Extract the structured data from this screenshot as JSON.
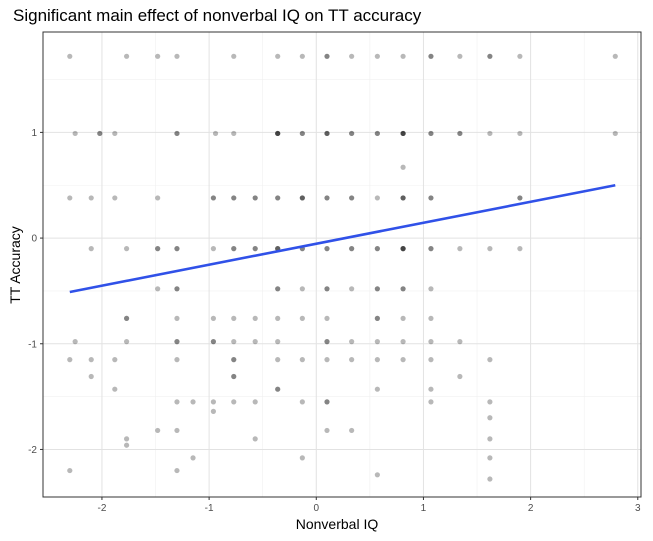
{
  "chart_data": {
    "type": "scatter",
    "title": "Significant main effect of nonverbal IQ on TT accuracy",
    "xlabel": "Nonverbal IQ",
    "ylabel": "TT Accuracy",
    "xlim": [
      -2.55,
      3.03
    ],
    "ylim": [
      -2.45,
      1.95
    ],
    "x_ticks": [
      -2,
      -1,
      0,
      1,
      2,
      3
    ],
    "y_ticks": [
      -2,
      -1,
      0,
      1
    ],
    "x_tick_labels": [
      "-2",
      "-1",
      "0",
      "1",
      "2",
      "3"
    ],
    "y_tick_labels": [
      "-2",
      "-1",
      "0",
      "1"
    ],
    "grid": true,
    "legend": "none",
    "point_color": "#000000",
    "point_alpha": 0.28,
    "line_color": "#3051e8",
    "fit_line": {
      "x": [
        -2.3,
        2.79
      ],
      "y": [
        -0.51,
        0.5
      ]
    },
    "points": [
      {
        "x": -2.3,
        "y": 1.72
      },
      {
        "x": -1.77,
        "y": 1.72
      },
      {
        "x": -1.48,
        "y": 1.72
      },
      {
        "x": -1.3,
        "y": 1.72
      },
      {
        "x": -0.77,
        "y": 1.72
      },
      {
        "x": -0.36,
        "y": 1.72
      },
      {
        "x": -0.13,
        "y": 1.72
      },
      {
        "x": 0.1,
        "y": 1.72
      },
      {
        "x": 0.1,
        "y": 1.72
      },
      {
        "x": 0.33,
        "y": 1.72
      },
      {
        "x": 0.57,
        "y": 1.72
      },
      {
        "x": 0.81,
        "y": 1.72
      },
      {
        "x": 1.07,
        "y": 1.72
      },
      {
        "x": 1.07,
        "y": 1.72
      },
      {
        "x": 1.34,
        "y": 1.72
      },
      {
        "x": 1.62,
        "y": 1.72
      },
      {
        "x": 1.62,
        "y": 1.72
      },
      {
        "x": 1.9,
        "y": 1.72
      },
      {
        "x": 2.79,
        "y": 1.72
      },
      {
        "x": -2.25,
        "y": 0.99
      },
      {
        "x": -2.02,
        "y": 0.99
      },
      {
        "x": -2.02,
        "y": 0.99
      },
      {
        "x": -1.88,
        "y": 0.99
      },
      {
        "x": -1.3,
        "y": 0.99
      },
      {
        "x": -1.3,
        "y": 0.99
      },
      {
        "x": -0.94,
        "y": 0.99
      },
      {
        "x": -0.77,
        "y": 0.99
      },
      {
        "x": -0.36,
        "y": 0.99
      },
      {
        "x": -0.36,
        "y": 0.99
      },
      {
        "x": -0.36,
        "y": 0.99
      },
      {
        "x": -0.36,
        "y": 0.99
      },
      {
        "x": -0.13,
        "y": 0.99
      },
      {
        "x": -0.13,
        "y": 0.99
      },
      {
        "x": 0.1,
        "y": 0.99
      },
      {
        "x": 0.1,
        "y": 0.99
      },
      {
        "x": 0.1,
        "y": 0.99
      },
      {
        "x": 0.33,
        "y": 0.99
      },
      {
        "x": 0.33,
        "y": 0.99
      },
      {
        "x": 0.57,
        "y": 0.99
      },
      {
        "x": 0.57,
        "y": 0.99
      },
      {
        "x": 0.81,
        "y": 0.99
      },
      {
        "x": 0.81,
        "y": 0.99
      },
      {
        "x": 0.81,
        "y": 0.99
      },
      {
        "x": 0.81,
        "y": 0.99
      },
      {
        "x": 1.07,
        "y": 0.99
      },
      {
        "x": 1.07,
        "y": 0.99
      },
      {
        "x": 1.34,
        "y": 0.99
      },
      {
        "x": 1.34,
        "y": 0.99
      },
      {
        "x": 1.62,
        "y": 0.99
      },
      {
        "x": 1.9,
        "y": 0.99
      },
      {
        "x": 2.79,
        "y": 0.99
      },
      {
        "x": 0.81,
        "y": 0.67
      },
      {
        "x": -2.3,
        "y": 0.38
      },
      {
        "x": -2.1,
        "y": 0.38
      },
      {
        "x": -1.88,
        "y": 0.38
      },
      {
        "x": -1.48,
        "y": 0.38
      },
      {
        "x": -0.96,
        "y": 0.38
      },
      {
        "x": -0.96,
        "y": 0.38
      },
      {
        "x": -0.77,
        "y": 0.38
      },
      {
        "x": -0.77,
        "y": 0.38
      },
      {
        "x": -0.57,
        "y": 0.38
      },
      {
        "x": -0.57,
        "y": 0.38
      },
      {
        "x": -0.36,
        "y": 0.38
      },
      {
        "x": -0.36,
        "y": 0.38
      },
      {
        "x": -0.13,
        "y": 0.38
      },
      {
        "x": -0.13,
        "y": 0.38
      },
      {
        "x": -0.13,
        "y": 0.38
      },
      {
        "x": 0.1,
        "y": 0.38
      },
      {
        "x": 0.1,
        "y": 0.38
      },
      {
        "x": 0.33,
        "y": 0.38
      },
      {
        "x": 0.33,
        "y": 0.38
      },
      {
        "x": 0.57,
        "y": 0.38
      },
      {
        "x": 0.81,
        "y": 0.38
      },
      {
        "x": 0.81,
        "y": 0.38
      },
      {
        "x": 0.81,
        "y": 0.38
      },
      {
        "x": 1.07,
        "y": 0.38
      },
      {
        "x": 1.07,
        "y": 0.38
      },
      {
        "x": 1.9,
        "y": 0.38
      },
      {
        "x": 1.9,
        "y": 0.38
      },
      {
        "x": -2.1,
        "y": -0.1
      },
      {
        "x": -1.77,
        "y": -0.1
      },
      {
        "x": -1.48,
        "y": -0.1
      },
      {
        "x": -1.48,
        "y": -0.1
      },
      {
        "x": -1.3,
        "y": -0.1
      },
      {
        "x": -1.3,
        "y": -0.1
      },
      {
        "x": -0.96,
        "y": -0.1
      },
      {
        "x": -0.77,
        "y": -0.1
      },
      {
        "x": -0.77,
        "y": -0.1
      },
      {
        "x": -0.57,
        "y": -0.1
      },
      {
        "x": -0.57,
        "y": -0.1
      },
      {
        "x": -0.36,
        "y": -0.1
      },
      {
        "x": -0.36,
        "y": -0.1
      },
      {
        "x": -0.36,
        "y": -0.1
      },
      {
        "x": -0.13,
        "y": -0.1
      },
      {
        "x": -0.13,
        "y": -0.1
      },
      {
        "x": 0.1,
        "y": -0.1
      },
      {
        "x": 0.1,
        "y": -0.1
      },
      {
        "x": 0.33,
        "y": -0.1
      },
      {
        "x": 0.33,
        "y": -0.1
      },
      {
        "x": 0.57,
        "y": -0.1
      },
      {
        "x": 0.57,
        "y": -0.1
      },
      {
        "x": 0.81,
        "y": -0.1
      },
      {
        "x": 0.81,
        "y": -0.1
      },
      {
        "x": 0.81,
        "y": -0.1
      },
      {
        "x": 0.81,
        "y": -0.1
      },
      {
        "x": 1.07,
        "y": -0.1
      },
      {
        "x": 1.07,
        "y": -0.1
      },
      {
        "x": 1.34,
        "y": -0.1
      },
      {
        "x": 1.62,
        "y": -0.1
      },
      {
        "x": 1.9,
        "y": -0.1
      },
      {
        "x": -1.48,
        "y": -0.48
      },
      {
        "x": -1.3,
        "y": -0.48
      },
      {
        "x": -1.3,
        "y": -0.48
      },
      {
        "x": -0.36,
        "y": -0.48
      },
      {
        "x": -0.36,
        "y": -0.48
      },
      {
        "x": -0.13,
        "y": -0.48
      },
      {
        "x": 0.1,
        "y": -0.48
      },
      {
        "x": 0.1,
        "y": -0.48
      },
      {
        "x": 0.33,
        "y": -0.48
      },
      {
        "x": 0.57,
        "y": -0.48
      },
      {
        "x": 0.57,
        "y": -0.48
      },
      {
        "x": 0.81,
        "y": -0.48
      },
      {
        "x": 0.81,
        "y": -0.48
      },
      {
        "x": 1.07,
        "y": -0.48
      },
      {
        "x": -1.77,
        "y": -0.76
      },
      {
        "x": -1.77,
        "y": -0.76
      },
      {
        "x": -1.3,
        "y": -0.76
      },
      {
        "x": -0.96,
        "y": -0.76
      },
      {
        "x": -0.77,
        "y": -0.76
      },
      {
        "x": -0.57,
        "y": -0.76
      },
      {
        "x": -0.36,
        "y": -0.76
      },
      {
        "x": -0.13,
        "y": -0.76
      },
      {
        "x": 0.1,
        "y": -0.76
      },
      {
        "x": 0.57,
        "y": -0.76
      },
      {
        "x": 0.57,
        "y": -0.76
      },
      {
        "x": 0.81,
        "y": -0.76
      },
      {
        "x": 1.07,
        "y": -0.76
      },
      {
        "x": -2.25,
        "y": -0.98
      },
      {
        "x": -1.77,
        "y": -0.98
      },
      {
        "x": -1.3,
        "y": -0.98
      },
      {
        "x": -1.3,
        "y": -0.98
      },
      {
        "x": -0.96,
        "y": -0.98
      },
      {
        "x": -0.96,
        "y": -0.98
      },
      {
        "x": -0.77,
        "y": -0.98
      },
      {
        "x": -0.57,
        "y": -0.98
      },
      {
        "x": -0.36,
        "y": -0.98
      },
      {
        "x": 0.1,
        "y": -0.98
      },
      {
        "x": 0.1,
        "y": -0.98
      },
      {
        "x": 0.33,
        "y": -0.98
      },
      {
        "x": 0.57,
        "y": -0.98
      },
      {
        "x": 0.81,
        "y": -0.98
      },
      {
        "x": 1.07,
        "y": -0.98
      },
      {
        "x": 1.34,
        "y": -0.98
      },
      {
        "x": -2.3,
        "y": -1.15
      },
      {
        "x": -2.1,
        "y": -1.15
      },
      {
        "x": -1.88,
        "y": -1.15
      },
      {
        "x": -1.3,
        "y": -1.15
      },
      {
        "x": -0.77,
        "y": -1.15
      },
      {
        "x": -0.77,
        "y": -1.15
      },
      {
        "x": -0.36,
        "y": -1.15
      },
      {
        "x": -0.13,
        "y": -1.15
      },
      {
        "x": 0.1,
        "y": -1.15
      },
      {
        "x": 0.33,
        "y": -1.15
      },
      {
        "x": 0.57,
        "y": -1.15
      },
      {
        "x": 0.81,
        "y": -1.15
      },
      {
        "x": 1.07,
        "y": -1.15
      },
      {
        "x": 1.62,
        "y": -1.15
      },
      {
        "x": -2.1,
        "y": -1.31
      },
      {
        "x": -0.77,
        "y": -1.31
      },
      {
        "x": -0.77,
        "y": -1.31
      },
      {
        "x": 1.34,
        "y": -1.31
      },
      {
        "x": -1.88,
        "y": -1.43
      },
      {
        "x": -0.36,
        "y": -1.43
      },
      {
        "x": -0.36,
        "y": -1.43
      },
      {
        "x": 0.57,
        "y": -1.43
      },
      {
        "x": 1.07,
        "y": -1.43
      },
      {
        "x": -1.3,
        "y": -1.55
      },
      {
        "x": -1.15,
        "y": -1.55
      },
      {
        "x": -0.96,
        "y": -1.55
      },
      {
        "x": -0.77,
        "y": -1.55
      },
      {
        "x": -0.57,
        "y": -1.55
      },
      {
        "x": -0.13,
        "y": -1.55
      },
      {
        "x": 0.1,
        "y": -1.55
      },
      {
        "x": 0.1,
        "y": -1.55
      },
      {
        "x": 1.07,
        "y": -1.55
      },
      {
        "x": 1.62,
        "y": -1.55
      },
      {
        "x": -0.96,
        "y": -1.64
      },
      {
        "x": 1.62,
        "y": -1.7
      },
      {
        "x": -1.48,
        "y": -1.82
      },
      {
        "x": -1.3,
        "y": -1.82
      },
      {
        "x": 0.1,
        "y": -1.82
      },
      {
        "x": 0.33,
        "y": -1.82
      },
      {
        "x": -1.77,
        "y": -1.9
      },
      {
        "x": -0.57,
        "y": -1.9
      },
      {
        "x": 1.62,
        "y": -1.9
      },
      {
        "x": -1.77,
        "y": -1.96
      },
      {
        "x": -1.15,
        "y": -2.08
      },
      {
        "x": -0.13,
        "y": -2.08
      },
      {
        "x": 1.62,
        "y": -2.08
      },
      {
        "x": -2.3,
        "y": -2.2
      },
      {
        "x": -1.3,
        "y": -2.2
      },
      {
        "x": 0.57,
        "y": -2.24
      },
      {
        "x": 1.62,
        "y": -2.28
      }
    ]
  }
}
